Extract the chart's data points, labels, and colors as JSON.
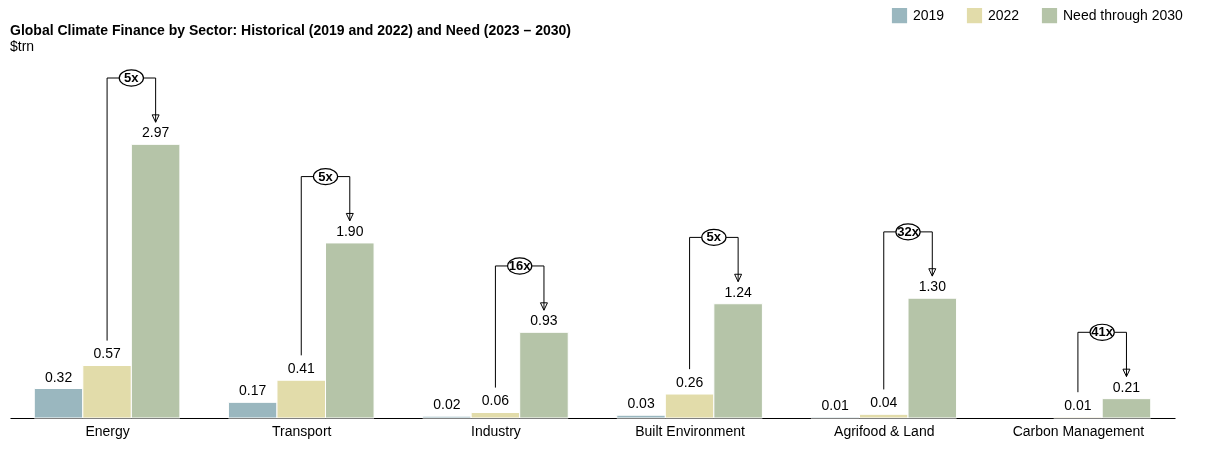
{
  "chart_data": {
    "type": "bar",
    "title": "Global Climate Finance by Sector: Historical (2019 and 2022) and Need (2023 – 2030)",
    "subtitle": "$trn",
    "categories": [
      "Energy",
      "Transport",
      "Industry",
      "Built Environment",
      "Agrifood & Land",
      "Carbon Management"
    ],
    "series": [
      {
        "name": "2019",
        "color": "#9ab7bf",
        "values": [
          0.32,
          0.17,
          0.02,
          0.03,
          0.01,
          null
        ],
        "value_labels": [
          "0.32",
          "0.17",
          "0.02",
          "0.03",
          "0.01",
          null
        ]
      },
      {
        "name": "2022",
        "color": "#e2dcaa",
        "values": [
          0.57,
          0.41,
          0.06,
          0.26,
          0.04,
          0.01
        ],
        "value_labels": [
          "0.57",
          "0.41",
          "0.06",
          "0.26",
          "0.04",
          "0.01"
        ]
      },
      {
        "name": "Need through 2030",
        "color": "#b5c4a8",
        "values": [
          2.97,
          1.9,
          0.93,
          1.24,
          1.3,
          0.21
        ],
        "value_labels": [
          "2.97",
          "1.90",
          "0.93",
          "1.24",
          "1.30",
          "0.21"
        ]
      }
    ],
    "legend": "top right",
    "annotations": [
      "5x",
      "5x",
      "16x",
      "5x",
      "32x",
      "41x"
    ]
  }
}
